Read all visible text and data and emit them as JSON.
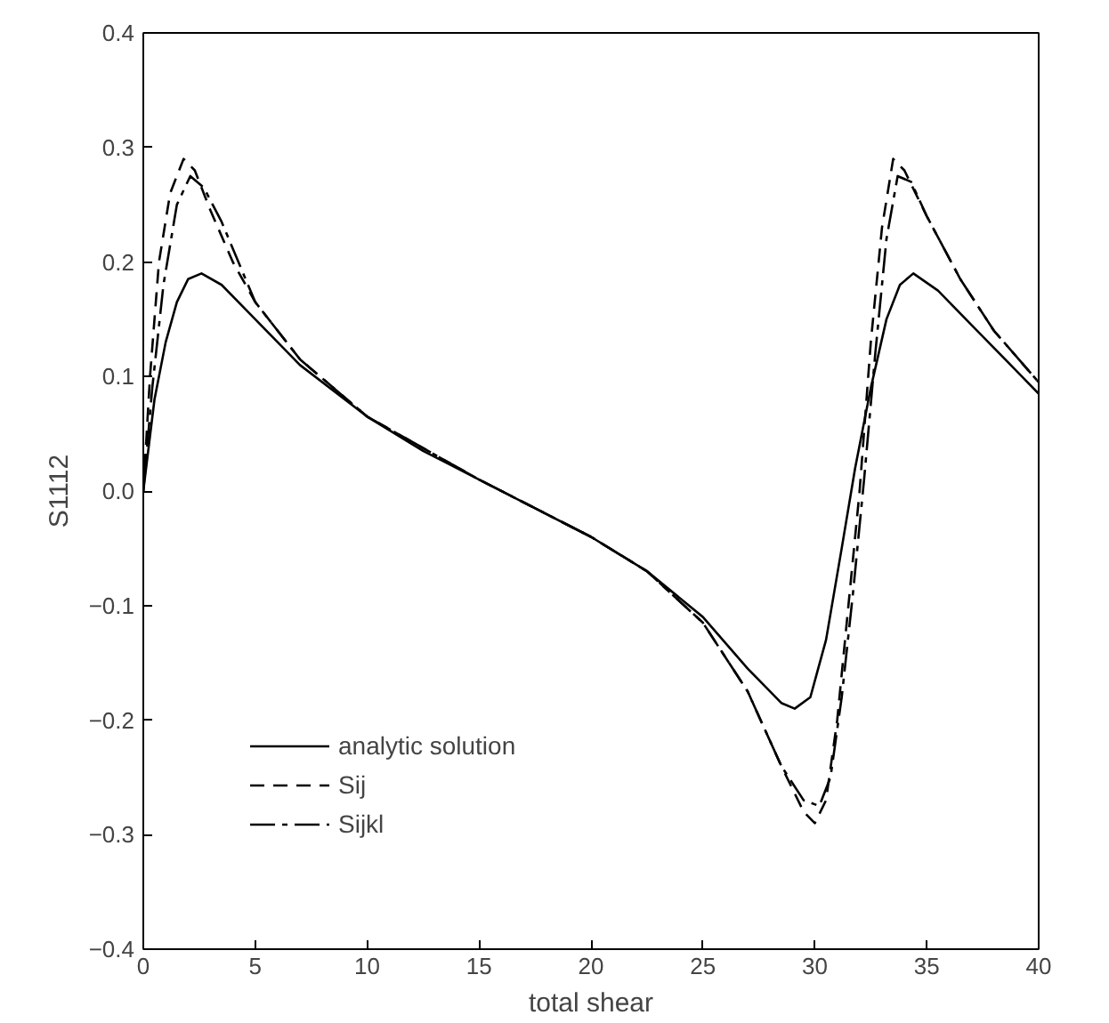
{
  "chart_data": {
    "type": "line",
    "xlabel": "total shear",
    "ylabel": "S1112",
    "xlim": [
      0,
      40
    ],
    "ylim": [
      -0.4,
      0.4
    ],
    "xticks": [
      0,
      5,
      10,
      15,
      20,
      25,
      30,
      35,
      40
    ],
    "yticks": [
      {
        "value": -0.4,
        "label": "−0.4"
      },
      {
        "value": -0.3,
        "label": "−0.3"
      },
      {
        "value": -0.2,
        "label": "−0.2"
      },
      {
        "value": -0.1,
        "label": "−0.1"
      },
      {
        "value": 0,
        "label": "0.0"
      },
      0.1,
      0.2,
      0.3,
      0.4
    ],
    "grid": false,
    "legend": "bottom left",
    "series": [
      {
        "name": "analytic solution",
        "color": "#000000",
        "line_style": "solid",
        "x": [
          0,
          0.5,
          1,
          1.5,
          2,
          2.6,
          3.5,
          5,
          7,
          10,
          12.5,
          15,
          17.5,
          20,
          22.5,
          25,
          27,
          28.5,
          29.1,
          29.8,
          30.5,
          31.2,
          31.8,
          32.5,
          33.2,
          33.8,
          34.4,
          35.5,
          37,
          38.5,
          40
        ],
        "values": [
          0,
          0.08,
          0.13,
          0.165,
          0.185,
          0.19,
          0.18,
          0.15,
          0.11,
          0.065,
          0.035,
          0.01,
          -0.015,
          -0.04,
          -0.07,
          -0.11,
          -0.155,
          -0.185,
          -0.19,
          -0.18,
          -0.13,
          -0.05,
          0.02,
          0.09,
          0.15,
          0.18,
          0.19,
          0.175,
          0.145,
          0.115,
          0.085
        ]
      },
      {
        "name": "Sij",
        "color": "#000000",
        "line_style": "dashed",
        "x": [
          0,
          0.3,
          0.7,
          1.2,
          1.8,
          2.3,
          3,
          4,
          5,
          7,
          10,
          15,
          20,
          22.5,
          25,
          27,
          28.5,
          29.5,
          30,
          30.5,
          31,
          31.5,
          32,
          32.5,
          33,
          33.5,
          34,
          35,
          36.5,
          38,
          40
        ],
        "values": [
          0,
          0.1,
          0.2,
          0.26,
          0.29,
          0.28,
          0.245,
          0.2,
          0.165,
          0.115,
          0.065,
          0.01,
          -0.04,
          -0.07,
          -0.115,
          -0.175,
          -0.24,
          -0.28,
          -0.29,
          -0.27,
          -0.2,
          -0.1,
          0.0,
          0.13,
          0.23,
          0.29,
          0.28,
          0.24,
          0.185,
          0.14,
          0.095
        ]
      },
      {
        "name": "Sijkl",
        "color": "#000000",
        "line_style": "dashdot",
        "x": [
          0,
          0.4,
          0.9,
          1.5,
          2.1,
          2.7,
          3.5,
          5,
          7,
          10,
          15,
          20,
          22.5,
          25,
          27,
          28.5,
          29.5,
          30.2,
          30.7,
          31.2,
          31.7,
          32.2,
          32.7,
          33.2,
          33.7,
          34.3,
          35,
          36.5,
          38,
          40
        ],
        "values": [
          0,
          0.09,
          0.18,
          0.25,
          0.275,
          0.265,
          0.235,
          0.165,
          0.115,
          0.065,
          0.01,
          -0.04,
          -0.07,
          -0.115,
          -0.175,
          -0.24,
          -0.27,
          -0.275,
          -0.25,
          -0.18,
          -0.09,
          0.01,
          0.12,
          0.22,
          0.275,
          0.27,
          0.24,
          0.185,
          0.14,
          0.095
        ]
      }
    ]
  }
}
